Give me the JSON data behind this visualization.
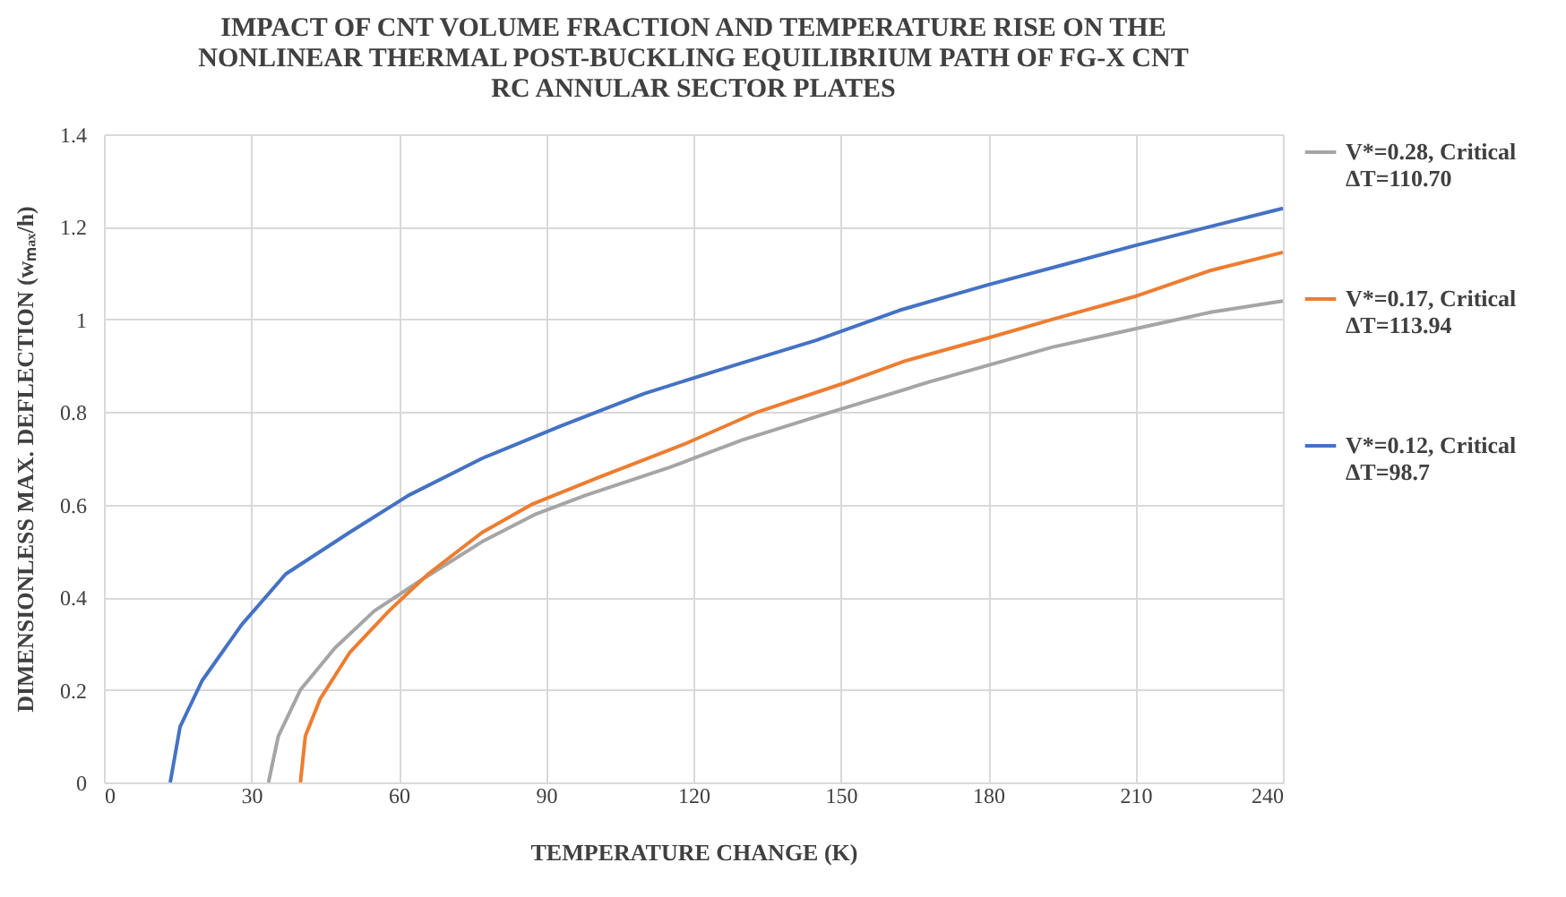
{
  "chart_data": {
    "type": "line",
    "title": "IMPACT OF CNT VOLUME FRACTION AND TEMPERATURE RISE ON THE NONLINEAR THERMAL POST-BUCKLING EQUILIBRIUM PATH OF FG-X CNT RC ANNULAR SECTOR PLATES",
    "xlabel": "TEMPERATURE CHANGE (K)",
    "ylabel": "DIMENSIONLESS MAX. DEFLECTION (wₘₐₓ/h)",
    "xlim": [
      0,
      240
    ],
    "xticks": [
      0,
      30,
      60,
      90,
      120,
      150,
      180,
      210,
      240
    ],
    "ylim": [
      0,
      1.4
    ],
    "yticks": [
      0,
      0.2,
      0.4,
      0.6,
      0.8,
      1,
      1.2,
      1.4
    ],
    "grid": true,
    "legend": "right",
    "series": [
      {
        "name": "V*=0.28, Critical ΔT=110.70",
        "color": "#a5a5a5",
        "x": [
          33.5,
          35.5,
          40,
          47,
          55,
          65,
          77,
          88,
          98,
          115,
          130,
          148,
          168,
          193,
          210,
          225,
          240
        ],
        "values": [
          0,
          0.1,
          0.2,
          0.29,
          0.37,
          0.44,
          0.52,
          0.58,
          0.62,
          0.68,
          0.74,
          0.8,
          0.865,
          0.94,
          0.98,
          1.015,
          1.04
        ]
      },
      {
        "name": "V*=0.17, Critical ΔT=113.94",
        "color": "#ed7d31",
        "x": [
          40,
          41,
          44,
          50,
          58,
          66,
          77,
          87,
          101,
          118,
          133,
          150,
          163,
          180,
          193,
          210,
          225,
          240
        ],
        "values": [
          0,
          0.1,
          0.18,
          0.28,
          0.37,
          0.45,
          0.54,
          0.6,
          0.66,
          0.73,
          0.8,
          0.86,
          0.91,
          0.96,
          1.0,
          1.05,
          1.105,
          1.145
        ]
      },
      {
        "name": "V*=0.12, Critical ΔT=98.7",
        "color": "#4472c4",
        "x": [
          13.5,
          15.5,
          20,
          28,
          37,
          50,
          62,
          77,
          93,
          110,
          128,
          145,
          162,
          180,
          196,
          210,
          225,
          240
        ],
        "values": [
          0,
          0.12,
          0.22,
          0.34,
          0.45,
          0.54,
          0.62,
          0.7,
          0.77,
          0.84,
          0.9,
          0.955,
          1.02,
          1.075,
          1.12,
          1.16,
          1.2,
          1.24
        ]
      }
    ]
  }
}
